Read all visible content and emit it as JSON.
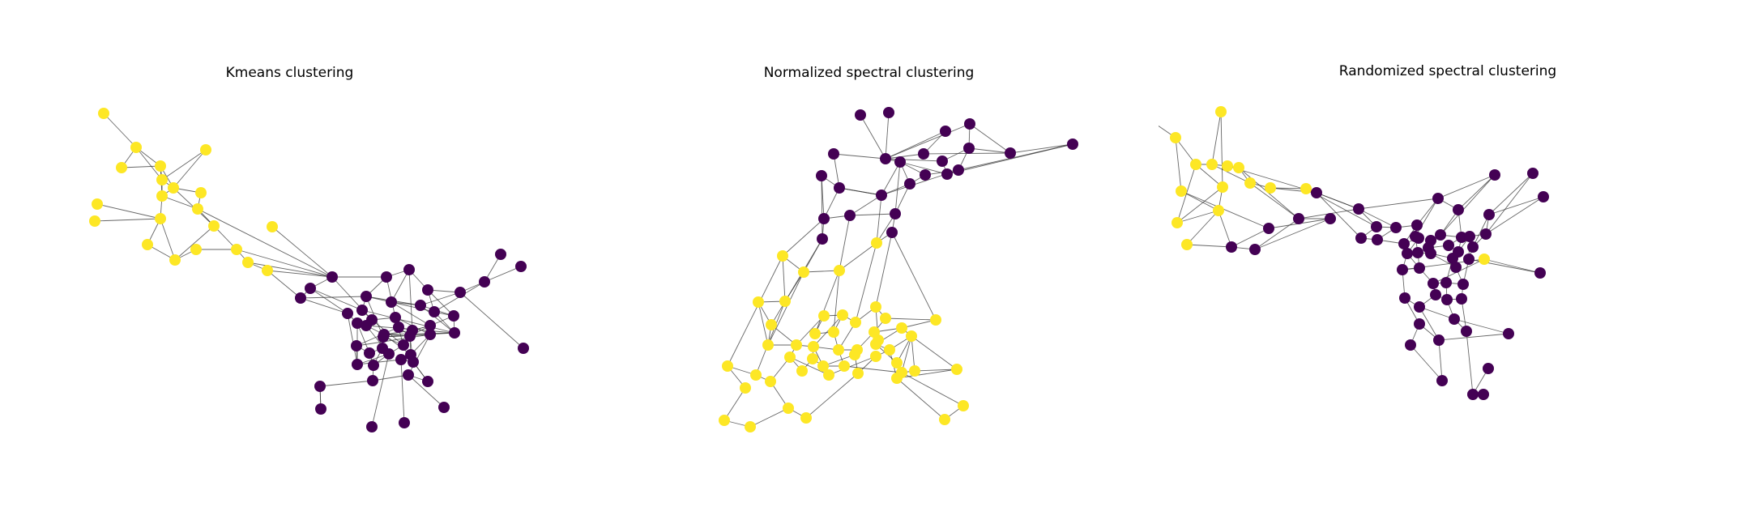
{
  "figure": {
    "panels": [
      {
        "key": "kmeans",
        "title": "Kmeans clustering"
      },
      {
        "key": "normalized",
        "title": "Normalized spectral clustering"
      },
      {
        "key": "randomized",
        "title": "Randomized spectral clustering"
      }
    ]
  },
  "colors": {
    "cluster_a": "#440154",
    "cluster_b": "#fde725",
    "edge": "#333333"
  }
}
